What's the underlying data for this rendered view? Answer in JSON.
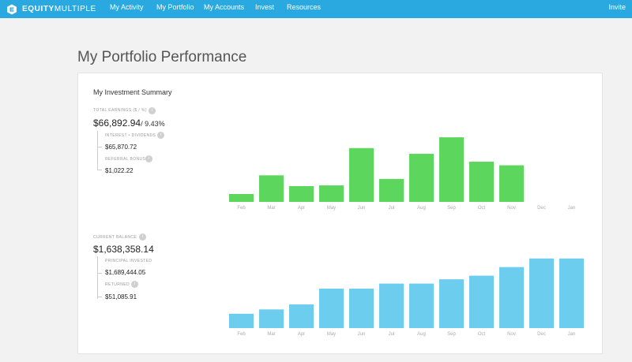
{
  "nav": {
    "logo_bold": "EQUITY",
    "logo_light": "MULTIPLE",
    "items": [
      "My Activity",
      "My Portfolio",
      "My Accounts",
      "Invest",
      "Resources"
    ],
    "invite": "Invite"
  },
  "page": {
    "title": "My Portfolio Performance"
  },
  "summary": {
    "title": "My Investment Summary",
    "total_earnings_label": "TOTAL EARNINGS ($ / %)",
    "total_earnings_value": "$66,892.94",
    "total_earnings_pct": "/ 9.43%",
    "interest_label": "INTEREST • DIVIDENDS",
    "interest_value": "$65,870.72",
    "referral_label": "REFERRAL BONUS",
    "referral_value": "$1,022.22",
    "current_balance_label": "CURRENT BALANCE",
    "current_balance_value": "$1,638,358.14",
    "principal_label": "PRINCIPAL INVESTED",
    "principal_value": "$1,689,444.05",
    "returned_label": "RETURNED",
    "returned_value": "$51,085.91"
  },
  "colors": {
    "nav_bg": "#29a9e0",
    "earnings_bar": "#5cd65c",
    "balance_bar": "#6dcdee"
  },
  "chart_data": [
    {
      "type": "bar",
      "categories": [
        "Feb",
        "Mar",
        "Apr",
        "May",
        "Jun",
        "Jul",
        "Aug",
        "Sep",
        "Oct",
        "Nov",
        "Dec",
        "Jan"
      ],
      "values": [
        11,
        37,
        22,
        23,
        75,
        32,
        67,
        90,
        56,
        51,
        0,
        0
      ],
      "ylim": [
        0,
        100
      ],
      "grid": false
    },
    {
      "type": "bar",
      "categories": [
        "Feb",
        "Mar",
        "Apr",
        "May",
        "Jun",
        "Jul",
        "Aug",
        "Sep",
        "Oct",
        "Nov",
        "Dec",
        "Jan"
      ],
      "values": [
        20,
        26,
        33,
        55,
        55,
        62,
        62,
        68,
        73,
        85,
        97,
        97
      ],
      "ylim": [
        0,
        100
      ],
      "grid": false
    }
  ]
}
